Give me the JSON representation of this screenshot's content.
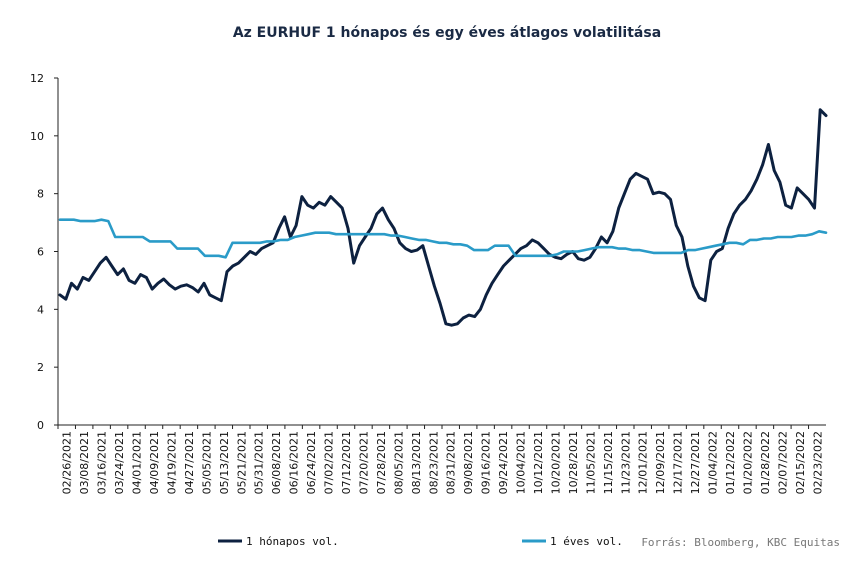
{
  "chart_data": {
    "type": "line",
    "title": "Az EURHUF 1 hónapos és egy éves átlagos volatilitása",
    "xlabel": "",
    "ylabel": "",
    "ylim": [
      0,
      12
    ],
    "yticks": [
      0,
      2,
      4,
      6,
      8,
      10,
      12
    ],
    "grid": false,
    "legend_placement": "bottom",
    "source": "Forrás: Bloomberg, KBC Equitas",
    "x_tick_labels": [
      "02/26/2021",
      "03/08/2021",
      "03/16/2021",
      "03/24/2021",
      "04/01/2021",
      "04/09/2021",
      "04/19/2021",
      "04/27/2021",
      "05/05/2021",
      "05/13/2021",
      "05/21/2021",
      "05/31/2021",
      "06/08/2021",
      "06/16/2021",
      "06/24/2021",
      "07/02/2021",
      "07/12/2021",
      "07/20/2021",
      "07/28/2021",
      "08/05/2021",
      "08/13/2021",
      "08/23/2021",
      "08/31/2021",
      "09/08/2021",
      "09/16/2021",
      "09/24/2021",
      "10/04/2021",
      "10/12/2021",
      "10/20/2021",
      "10/28/2021",
      "11/05/2021",
      "11/15/2021",
      "11/23/2021",
      "12/01/2021",
      "12/09/2021",
      "12/17/2021",
      "12/27/2021",
      "01/04/2022",
      "01/12/2022",
      "01/20/2022",
      "01/28/2022",
      "02/07/2022",
      "02/15/2022",
      "02/23/2022"
    ],
    "series": [
      {
        "name": "1 hónapos vol.",
        "color": "#0d2140",
        "values": [
          4.5,
          4.35,
          4.9,
          4.7,
          5.1,
          5.0,
          5.3,
          5.6,
          5.8,
          5.5,
          5.2,
          5.4,
          5.0,
          4.9,
          5.2,
          5.1,
          4.7,
          4.9,
          5.05,
          4.85,
          4.7,
          4.8,
          4.85,
          4.75,
          4.6,
          4.9,
          4.5,
          4.4,
          4.3,
          5.3,
          5.5,
          5.6,
          5.8,
          6.0,
          5.9,
          6.1,
          6.2,
          6.3,
          6.8,
          7.2,
          6.5,
          6.9,
          7.9,
          7.6,
          7.5,
          7.7,
          7.6,
          7.9,
          7.7,
          7.5,
          6.8,
          5.6,
          6.2,
          6.5,
          6.8,
          7.3,
          7.5,
          7.1,
          6.8,
          6.3,
          6.1,
          6.0,
          6.05,
          6.2,
          5.5,
          4.8,
          4.2,
          3.5,
          3.45,
          3.5,
          3.7,
          3.8,
          3.75,
          4.0,
          4.5,
          4.9,
          5.2,
          5.5,
          5.7,
          5.9,
          6.1,
          6.2,
          6.4,
          6.3,
          6.1,
          5.9,
          5.8,
          5.75,
          5.9,
          6.0,
          5.75,
          5.7,
          5.8,
          6.1,
          6.5,
          6.3,
          6.7,
          7.5,
          8.0,
          8.5,
          8.7,
          8.6,
          8.5,
          8.0,
          8.05,
          8.0,
          7.8,
          6.9,
          6.5,
          5.5,
          4.8,
          4.4,
          4.3,
          5.7,
          6.0,
          6.1,
          6.8,
          7.3,
          7.6,
          7.8,
          8.1,
          8.5,
          9.0,
          9.7,
          8.8,
          8.4,
          7.6,
          7.5,
          8.2,
          8.0,
          7.8,
          7.5,
          10.9,
          10.7
        ]
      },
      {
        "name": "1 éves vol.",
        "color": "#2a9bc8",
        "values": [
          7.1,
          7.1,
          7.1,
          7.05,
          7.05,
          7.05,
          7.1,
          7.05,
          6.5,
          6.5,
          6.5,
          6.5,
          6.5,
          6.35,
          6.35,
          6.35,
          6.35,
          6.1,
          6.1,
          6.1,
          6.1,
          5.85,
          5.85,
          5.85,
          5.8,
          6.3,
          6.3,
          6.3,
          6.3,
          6.3,
          6.35,
          6.35,
          6.4,
          6.4,
          6.5,
          6.55,
          6.6,
          6.65,
          6.65,
          6.65,
          6.6,
          6.6,
          6.6,
          6.6,
          6.6,
          6.6,
          6.6,
          6.6,
          6.55,
          6.55,
          6.5,
          6.45,
          6.4,
          6.4,
          6.35,
          6.3,
          6.3,
          6.25,
          6.25,
          6.2,
          6.05,
          6.05,
          6.05,
          6.2,
          6.2,
          6.2,
          5.85,
          5.85,
          5.85,
          5.85,
          5.85,
          5.85,
          5.9,
          6.0,
          6.0,
          6.0,
          6.05,
          6.1,
          6.15,
          6.15,
          6.15,
          6.1,
          6.1,
          6.05,
          6.05,
          6.0,
          5.95,
          5.95,
          5.95,
          5.95,
          5.95,
          6.05,
          6.05,
          6.1,
          6.15,
          6.2,
          6.25,
          6.3,
          6.3,
          6.25,
          6.4,
          6.4,
          6.45,
          6.45,
          6.5,
          6.5,
          6.5,
          6.55,
          6.55,
          6.6,
          6.7,
          6.65
        ]
      }
    ]
  }
}
